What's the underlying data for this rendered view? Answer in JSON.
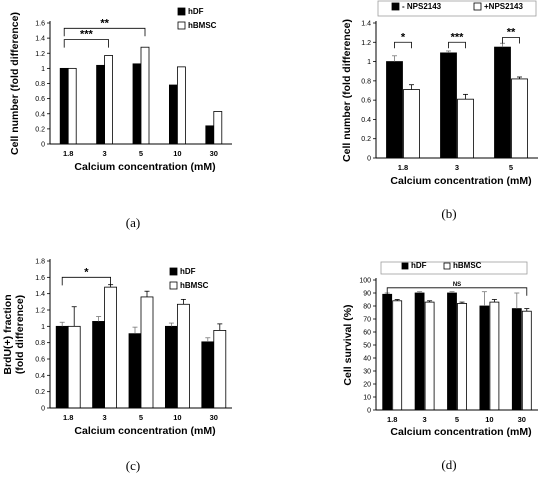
{
  "colors": {
    "filled": "#000000",
    "open": "#ffffff",
    "axis": "#000000",
    "frame": "#9e9e9e"
  },
  "chart_data": [
    {
      "id": "a",
      "panel_label": "(a)",
      "type": "bar",
      "ylabel": "Cell number (fold difference)",
      "xlabel": "Calcium concentration (mM)",
      "ylim": [
        0,
        1.6
      ],
      "yticks": [
        "0",
        "0.2",
        "0.4",
        "0.6",
        "0.8",
        "1",
        "1.2",
        "1.4",
        "1.6"
      ],
      "categories": [
        "1.8",
        "3",
        "5",
        "10",
        "30"
      ],
      "series": [
        {
          "name": "hDF",
          "style": "filled",
          "values": [
            1.0,
            1.04,
            1.06,
            0.78,
            0.24
          ],
          "err": [
            0,
            0,
            0,
            0,
            0
          ]
        },
        {
          "name": "hBMSC",
          "style": "open",
          "values": [
            1.0,
            1.17,
            1.28,
            1.02,
            0.43
          ],
          "err": [
            0,
            0,
            0,
            0,
            0
          ]
        }
      ],
      "legend": "top-right",
      "legend_frame": false,
      "significance": [
        {
          "label": "***",
          "from": 0,
          "to": 1,
          "y": 1.38
        },
        {
          "label": "**",
          "from": 0,
          "to": 2,
          "y": 1.53
        }
      ]
    },
    {
      "id": "b",
      "panel_label": "(b)",
      "type": "bar",
      "ylabel": "Cell number (fold difference)",
      "xlabel": "Calcium concentration (mM)",
      "ylim": [
        0,
        1.4
      ],
      "yticks": [
        "0",
        "0.2",
        "0.4",
        "0.6",
        "0.8",
        "1",
        "1.2",
        "1.4"
      ],
      "categories": [
        "1.8",
        "3",
        "5"
      ],
      "series": [
        {
          "name": "- NPS2143",
          "style": "filled",
          "values": [
            1.0,
            1.09,
            1.15
          ],
          "err": [
            0.06,
            0.02,
            0.04
          ]
        },
        {
          "name": "+NPS2143",
          "style": "open",
          "values": [
            0.71,
            0.61,
            0.82
          ],
          "err": [
            0.05,
            0.05,
            0.02
          ]
        }
      ],
      "legend": "top",
      "legend_frame": true,
      "significance": [
        {
          "label": "*",
          "cat": 0,
          "y": 1.2
        },
        {
          "label": "***",
          "cat": 1,
          "y": 1.2
        },
        {
          "label": "**",
          "cat": 2,
          "y": 1.25
        }
      ]
    },
    {
      "id": "c",
      "panel_label": "(c)",
      "type": "bar",
      "ylabel_lines": [
        "BrdU(+) fraction",
        "(fold difference)"
      ],
      "xlabel": "Calcium concentration (mM)",
      "ylim": [
        0,
        1.8
      ],
      "yticks": [
        "0",
        "0.2",
        "0.4",
        "0.6",
        "0.8",
        "1",
        "1.2",
        "1.4",
        "1.6",
        "1.8"
      ],
      "categories": [
        "1.8",
        "3",
        "5",
        "10",
        "30"
      ],
      "series": [
        {
          "name": "hDF",
          "style": "filled",
          "values": [
            1.0,
            1.06,
            0.91,
            1.0,
            0.81
          ],
          "err": [
            0.05,
            0.06,
            0.08,
            0.04,
            0.05
          ]
        },
        {
          "name": "hBMSC",
          "style": "open",
          "values": [
            1.0,
            1.48,
            1.36,
            1.27,
            0.95
          ],
          "err": [
            0.24,
            0.03,
            0.07,
            0.06,
            0.08
          ]
        }
      ],
      "legend": "top-right",
      "legend_frame": false,
      "significance": [
        {
          "label": "*",
          "from": 0,
          "to": 1,
          "y": 1.6
        }
      ]
    },
    {
      "id": "d",
      "panel_label": "(d)",
      "type": "bar",
      "ylabel": "Cell survival (%)",
      "xlabel": "Calcium concentration (mM)",
      "ylim": [
        0,
        100
      ],
      "yticks": [
        "0",
        "10",
        "20",
        "30",
        "40",
        "50",
        "60",
        "70",
        "80",
        "90",
        "100"
      ],
      "categories": [
        "1.8",
        "3",
        "5",
        "10",
        "30"
      ],
      "series": [
        {
          "name": "hDF",
          "style": "filled",
          "values": [
            89,
            90,
            90,
            80,
            78
          ],
          "err": [
            1,
            1,
            1,
            11,
            12
          ]
        },
        {
          "name": "hBMSC",
          "style": "open",
          "values": [
            84,
            83,
            82,
            83,
            76
          ],
          "err": [
            1,
            1,
            1,
            2,
            2
          ]
        }
      ],
      "legend": "top",
      "legend_frame": true,
      "significance": [
        {
          "label": "NS",
          "from": 0,
          "to": 4,
          "y": 94
        }
      ]
    }
  ]
}
